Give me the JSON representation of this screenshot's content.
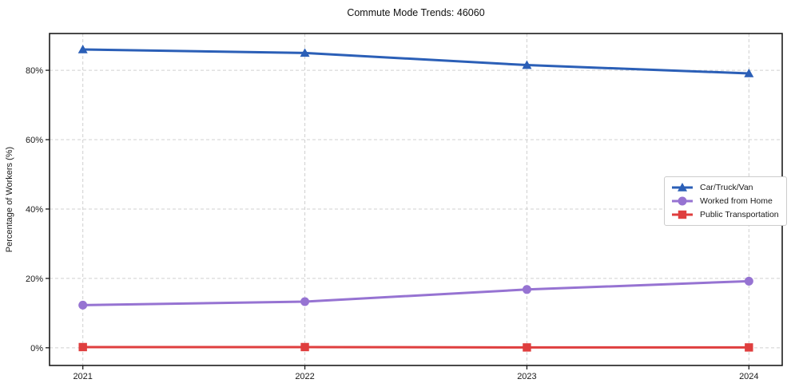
{
  "page": {
    "background": "#ffffff"
  },
  "chart_data": {
    "type": "line",
    "title": "Commute Mode Trends: 46060",
    "xlabel": "",
    "ylabel": "Percentage of Workers (%)",
    "categories": [
      "2021",
      "2022",
      "2023",
      "2024"
    ],
    "x": [
      2021,
      2022,
      2023,
      2024
    ],
    "xlim": [
      2020.85,
      2024.15
    ],
    "ylim": [
      -5.1,
      90.6
    ],
    "yticks": {
      "values": [
        0,
        20,
        40,
        60,
        80
      ],
      "labels": [
        "0%",
        "20%",
        "40%",
        "60%",
        "80%"
      ]
    },
    "grid": true,
    "legend_position": "center-right",
    "series": [
      {
        "name": "Car/Truck/Van",
        "color": "#2b5fb7",
        "marker": "triangle",
        "values": [
          86.0,
          85.0,
          81.5,
          79.1
        ]
      },
      {
        "name": "Worked from Home",
        "color": "#9673d2",
        "marker": "circle",
        "values": [
          12.3,
          13.3,
          16.8,
          19.2
        ]
      },
      {
        "name": "Public Transportation",
        "color": "#df3e3e",
        "marker": "square",
        "values": [
          0.2,
          0.2,
          0.1,
          0.1
        ]
      }
    ]
  },
  "style": {
    "grid_color": "#d0d0d0",
    "spine_color": "#1c1c1c",
    "tick_color": "#1c1c1c",
    "text_color": "#1a1a1a",
    "legend_border": "#cccccc",
    "legend_background": "#ffffff"
  }
}
